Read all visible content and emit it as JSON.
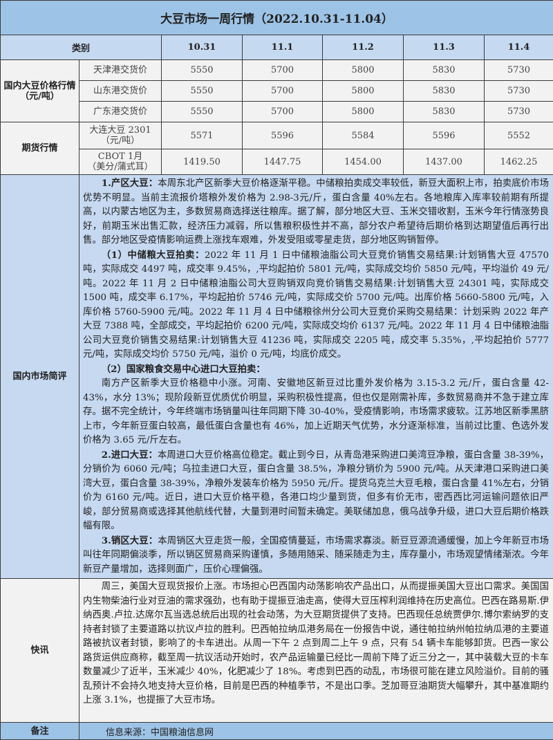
{
  "title": "大豆市场一周行情（2022.10.31-11.04）",
  "header": {
    "category": "类别",
    "dates": [
      "10.31",
      "11.1",
      "11.2",
      "11.3",
      "11.4"
    ]
  },
  "domestic": {
    "label": "国内大豆价格行情（元/吨）",
    "rows": [
      {
        "name": "天津港交货价",
        "values": [
          "5550",
          "5700",
          "5800",
          "5830",
          "5730"
        ]
      },
      {
        "name": "山东港交货价",
        "values": [
          "5550",
          "5700",
          "5800",
          "5830",
          "5730"
        ]
      },
      {
        "name": "广东港交货价",
        "values": [
          "5550",
          "5700",
          "5800",
          "5830",
          "5730"
        ]
      }
    ]
  },
  "futures": {
    "label": "期货行情",
    "rows": [
      {
        "name": "大连大豆 2301",
        "unit": "（元/吨）",
        "values": [
          "5571",
          "5596",
          "5584",
          "5596",
          "5552"
        ]
      },
      {
        "name": "CBOT 1月",
        "unit": "（美分/蒲式耳）",
        "values": [
          "1419.50",
          "1447.75",
          "1454.00",
          "1437.00",
          "1462.25"
        ]
      }
    ]
  },
  "review": {
    "label": "国内市场简评",
    "paragraphs": [
      {
        "head": "1.产区大豆：",
        "text": "本周东北产区新季大豆价格逐渐平稳。中储粮拍卖成交率较低，新豆大面积上市，拍卖底价市场优势不明显。当前主流报价塔粮外发价格为 2.98-3元/斤，蛋白含量 40%左右。各地粮库入库率较前期有所提高，以内蒙古地区为主，多数贸易商选择送往粮库。据了解，部分地区大豆、玉米交错收割，玉米今年行情涨势良好，前期玉米出售汇款，经济压力减弱，所以售粮积极性并不高，部分农户希望待后期价格到达期望值后再行出售。部分地区受疫情影响运费上涨找车艰难，外发受阻或零星走货，部分地区购销暂停。"
      },
      {
        "head": "（1）中储粮大豆拍卖：",
        "text": "2022 年 11 月 1 日中储粮油脂公司大豆竞价销售交易结果:计划销售大豆 47570 吨，实际成交 4497 吨，成交率 9.45%，,平均起拍价 5801 元/吨，实际成交均价 5850 元/吨，平均溢价 49 元/吨。2022 年 11 月 2 日中储粮油脂公司大豆购销双向竞价销售交易结果:计划销售大豆 24301 吨，实际成交 1500 吨，成交率 6.17%，平均起拍价 5746 元/吨，实际成交价 5700 元/吨。出库价格 5660-5800 元/吨，入库价格 5760-5900 元/吨。2022 年 11 月 4 日中储粮徐州分公司大豆竞价采购交易结果：计划采购 2022 年产大豆 7388 吨，全部成交，平均起拍价 6200 元/吨，实际成交均价 6137 元/吨。2022 年 11 月 4 日中储粮油脂公司大豆竞价销售交易结果:计划销售大豆 41236 吨，实际成交 2205 吨，成交率 5.35%，,平均起拍价 5777 元/吨，实际成交均价 5750 元/吨，溢价 0 元/吨，均底价成交。"
      },
      {
        "head": "（2）国家粮食交易中心进口大豆拍卖：",
        "text": ""
      },
      {
        "head": "",
        "text": "南方产区新季大豆价格稳中小涨。河南、安徽地区新豆过比重外发价格为 3.15-3.2 元/斤，蛋白含量 42-43%，水分 13%；现阶段新豆优质优价明显，采购积极性提高，但也仅是刚需补库，多数贸易商并不急于建立库存。据不完全统计，今年终端市场销量叫往年同期下降 30-40%，受疫情影响，市场需求疲软。江苏地区新季黑脐上市，今年新豆蛋白较高，最低蛋白含量也有 46%，加上近期天气优势，水分逐渐标准，当前过比重、色选外发价格为 3.65 元/斤左右。"
      },
      {
        "head": "2.进口大豆：",
        "text": "本周进口大豆价格高位稳定。截止到今日，从青岛港采购进口美湾豆净粮，蛋白含量 38-39%，分销价为 6060 元/吨；乌拉圭进口大豆，蛋白含量 38.5%，净粮分销价为 5900 元/吨。从天津港口采购进口美湾大豆，蛋白含量 38-39%，净粮外发装车价格为 5950 元/斤。提货乌克兰大豆毛粮，蛋白含量 41%左右，分销价为 6160 元/吨。近日，进口大豆价格平稳，各港口均少量到货，但多有价无市，密西西比河运输问题依旧严峻，部分贸易商或选择其他航线代替，大量到港时间暂未确定。美联储加息，俄乌战争升级，进口大豆后期价格跌幅有限。"
      },
      {
        "head": "3.销区大豆：",
        "text": "本周销区大豆走货一般，全国疫情蔓延，市场需求寡淡。新豆豆源流通缓慢，加上今年新豆市场叫往年同期偏淡季，所以销区贸易商采购谨慎，多随用随采、随采随走为主，库存量小，市场观望情绪渐浓。今年新豆产量增加，选择则面广，压价心理偏强。"
      }
    ]
  },
  "news": {
    "label": "快讯",
    "text": "周三，美国大豆现货报价上涨。市场担心巴西国内动荡影响农产品出口，从而提振美国大豆出口需求。美国国内生物柴油行业对豆油的需求强劲，也有助于提振豆油走高，使得大豆压榨利润维持在历史高位。巴西在路易斯.伊纳西奥.卢拉.达席尔瓦当选总统后出现的社会动荡，为大豆期货提供了支持。巴西现任总统贾伊尔.博尔索纳罗的支持者封锁了主要道路以抗议卢拉的胜利。巴西帕拉纳瓜港务局在一份报告中说，通往帕拉纳州帕拉纳瓜港的主要道路被抗议者封锁，影响了的卡车进出。从周一下午 2 点到周二上午 9 点，只有 54 辆卡车能够卸货。巴西一家公路货运供应商称，截至周一抗议活动开始时，农产品运输量已经比一周前下降了近三分之一，其中装载大豆的卡车数量减少了近半，玉米减少 40%，化肥减少了 18%。考虑到巴西的动乱，市场很可能在建立风险溢价。目前的骚乱预计不会持久地支持大豆价格，目前是巴西的种植季节，不是出口季。芝加哥豆油期货大幅攀升，其中基准期约上涨 3.1%，也提振了大豆市场。"
  },
  "note": {
    "label": "备注",
    "text": "信息来源：中国粮油信息网"
  },
  "colors": {
    "title_bg": "#9dc3e6",
    "header_bg": "#c5d9f1",
    "review_bg": "#c6d9f1",
    "body_bg": "#f2f2f2"
  }
}
